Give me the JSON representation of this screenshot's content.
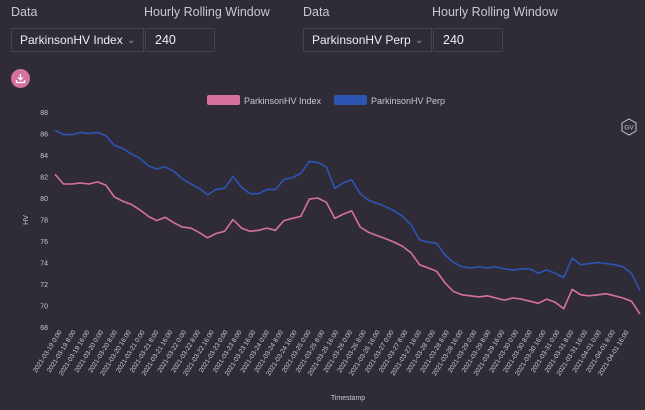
{
  "controls": {
    "left": {
      "data_label": "Data",
      "window_label": "Hourly Rolling Window",
      "data_value": "ParkinsonHV Index",
      "window_value": "240"
    },
    "right": {
      "data_label": "Data",
      "window_label": "Hourly Rolling Window",
      "data_value": "ParkinsonHV Perp",
      "window_value": "240"
    }
  },
  "icons": {
    "download": "download-icon",
    "watermark": "gv-logo-icon"
  },
  "colors": {
    "index": "#d6719e",
    "perp": "#2c55b4",
    "background": "#2f2c38"
  },
  "chart_data": {
    "type": "line",
    "title": "",
    "xlabel": "Timestamp",
    "ylabel": "HV",
    "ylim": [
      68,
      88
    ],
    "yticks": [
      "68",
      "70",
      "72",
      "74",
      "76",
      "78",
      "80",
      "82",
      "84",
      "86",
      "88"
    ],
    "legend_position": "top-center",
    "grid": false,
    "xticks": [
      "2021-03-19 0:00",
      "2021-03-19 8:00",
      "2021-03-19 16:00",
      "2021-03-20 0:00",
      "2021-03-20 8:00",
      "2021-03-20 16:00",
      "2021-03-21 0:00",
      "2021-03-21 8:00",
      "2021-03-21 16:00",
      "2021-03-22 0:00",
      "2021-03-22 8:00",
      "2021-03-22 16:00",
      "2021-03-23 0:00",
      "2021-03-23 8:00",
      "2021-03-23 16:00",
      "2021-03-24 0:00",
      "2021-03-24 8:00",
      "2021-03-24 16:00",
      "2021-03-25 0:00",
      "2021-03-25 8:00",
      "2021-03-25 16:00",
      "2021-03-26 0:00",
      "2021-03-26 8:00",
      "2021-03-26 16:00",
      "2021-03-27 0:00",
      "2021-03-27 8:00",
      "2021-03-27 16:00",
      "2021-03-28 0:00",
      "2021-03-28 8:00",
      "2021-03-28 16:00",
      "2021-03-29 0:00",
      "2021-03-29 8:00",
      "2021-03-29 16:00",
      "2021-03-30 0:00",
      "2021-03-30 8:00",
      "2021-03-30 16:00",
      "2021-03-31 0:00",
      "2021-03-31 8:00",
      "2021-03-31 16:00",
      "2021-04-01 0:00",
      "2021-04-01 8:00",
      "2021-04-01 16:00"
    ],
    "series": [
      {
        "name": "ParkinsonHV Index",
        "values": [
          82.2,
          81.3,
          81.3,
          81.4,
          81.3,
          81.5,
          81.2,
          80.1,
          79.7,
          79.4,
          78.9,
          78.3,
          77.9,
          78.2,
          77.7,
          77.3,
          77.2,
          76.8,
          76.3,
          76.7,
          76.9,
          78.0,
          77.2,
          76.9,
          77.0,
          77.2,
          77.0,
          77.9,
          78.1,
          78.3,
          79.9,
          80.0,
          79.6,
          78.1,
          78.5,
          78.8,
          77.3,
          76.8,
          76.5,
          76.2,
          75.9,
          75.5,
          74.9,
          73.8,
          73.5,
          73.2,
          72.1,
          71.3,
          71.0,
          70.9,
          70.8,
          70.9,
          70.7,
          70.5,
          70.7,
          70.6,
          70.4,
          70.2,
          70.6,
          70.3,
          69.7,
          71.5,
          71.0,
          70.9,
          71.0,
          71.1,
          70.9,
          70.7,
          70.4,
          69.2
        ]
      },
      {
        "name": "ParkinsonHV Perp",
        "values": [
          86.3,
          85.9,
          85.9,
          86.1,
          86.0,
          86.1,
          85.8,
          84.9,
          84.6,
          84.1,
          83.7,
          83.0,
          82.7,
          82.9,
          82.5,
          81.8,
          81.3,
          80.9,
          80.3,
          80.8,
          80.9,
          82.0,
          81.0,
          80.4,
          80.4,
          80.8,
          80.8,
          81.7,
          81.9,
          82.3,
          83.4,
          83.3,
          82.9,
          80.9,
          81.4,
          81.7,
          80.4,
          79.8,
          79.5,
          79.2,
          78.8,
          78.3,
          77.5,
          76.1,
          75.9,
          75.8,
          74.7,
          74.0,
          73.6,
          73.5,
          73.6,
          73.5,
          73.6,
          73.4,
          73.3,
          73.4,
          73.4,
          73.0,
          73.3,
          73.0,
          72.6,
          74.4,
          73.8,
          73.9,
          74.0,
          73.9,
          73.8,
          73.6,
          73.0,
          71.4
        ]
      }
    ]
  }
}
